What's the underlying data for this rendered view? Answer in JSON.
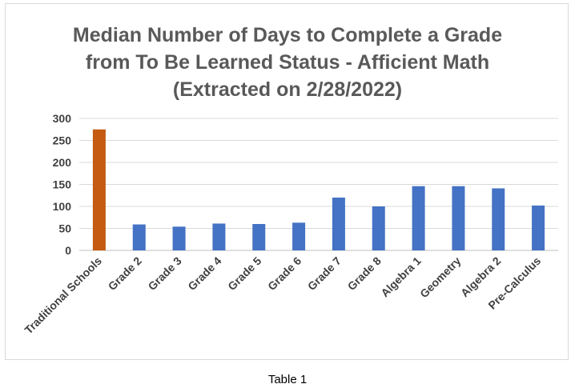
{
  "chart_data": {
    "type": "bar",
    "title_lines": [
      "Median Number of Days to Complete a Grade",
      "from To Be Learned Status - Afficient Math",
      "(Extracted on 2/28/2022)"
    ],
    "categories": [
      "Traditional Schools",
      "Grade 2",
      "Grade 3",
      "Grade 4",
      "Grade 5",
      "Grade 6",
      "Grade 7",
      "Grade 8",
      "Algebra 1",
      "Geometry",
      "Algebra 2",
      "Pre-Calculus"
    ],
    "values": [
      275,
      59,
      54,
      61,
      60,
      63,
      120,
      100,
      146,
      146,
      141,
      102
    ],
    "bar_colors": [
      "#c55a11",
      "#4472c4",
      "#4472c4",
      "#4472c4",
      "#4472c4",
      "#4472c4",
      "#4472c4",
      "#4472c4",
      "#4472c4",
      "#4472c4",
      "#4472c4",
      "#4472c4"
    ],
    "ylim": [
      0,
      300
    ],
    "yticks": [
      "0",
      "50",
      "100",
      "150",
      "200",
      "250",
      "300"
    ],
    "grid": true,
    "legend": "none",
    "xlabel": "",
    "ylabel": ""
  },
  "caption": "Table 1"
}
